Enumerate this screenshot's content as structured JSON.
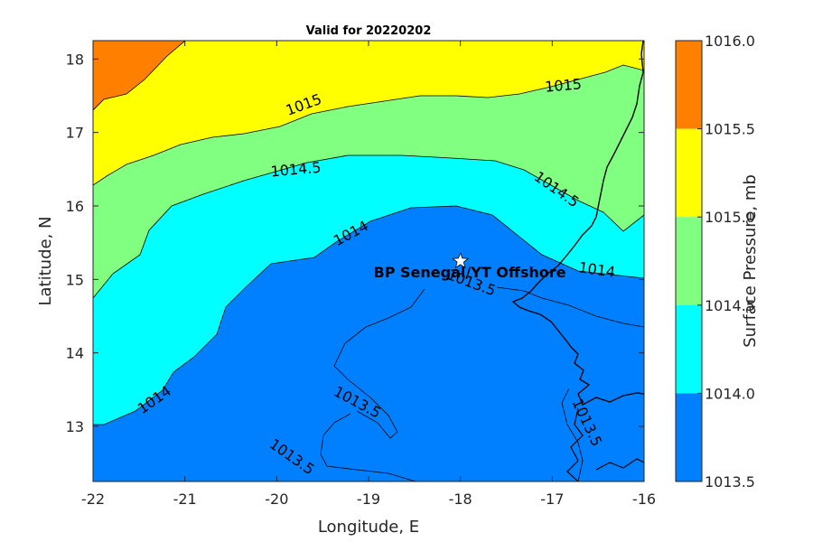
{
  "title": "Valid for 20220202",
  "xlabel": "Longitude, E",
  "ylabel": "Latitude, N",
  "x_ticks": [
    "-22",
    "-21",
    "-20",
    "-19",
    "-18",
    "-17",
    "-16"
  ],
  "y_ticks": [
    "13",
    "14",
    "15",
    "16",
    "17",
    "18"
  ],
  "colorbar": {
    "label": "Surface Pressure, mb",
    "ticks": [
      "1016.0",
      "1015.5",
      "1015.0",
      "1014.5",
      "1014.0",
      "1013.5"
    ],
    "colors": [
      "#ff7f00",
      "#ffff00",
      "#80ff80",
      "#00ffff",
      "#0080ff"
    ]
  },
  "contour_labels": [
    "1015",
    "1015",
    "1014.5",
    "1014.5",
    "1014",
    "1014",
    "1014",
    "1013.5",
    "1013.5",
    "1013.5",
    "1013.5"
  ],
  "site": {
    "name": "BP Senegal/YT Offshore",
    "lon": -18,
    "lat": 15.25
  },
  "chart_data": {
    "type": "heatmap",
    "title": "Valid for 20220202",
    "xlabel": "Longitude, E",
    "ylabel": "Latitude, N",
    "xlim": [
      -22,
      -16
    ],
    "ylim": [
      12.25,
      18.25
    ],
    "levels": [
      1013.5,
      1014.0,
      1014.5,
      1015.0,
      1015.5,
      1016.0
    ],
    "colorbar_label": "Surface Pressure, mb"
  }
}
